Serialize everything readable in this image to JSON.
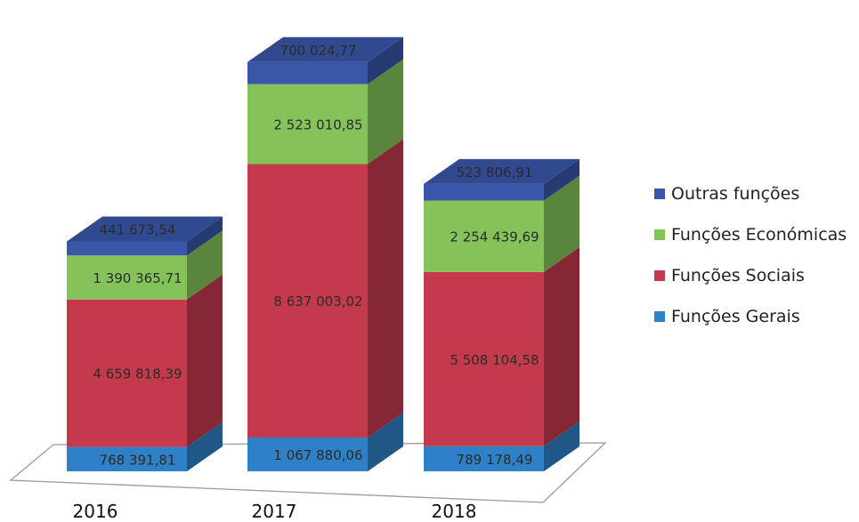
{
  "chart_data": {
    "type": "bar",
    "stacked": true,
    "three_d": true,
    "categories": [
      "2016",
      "2017",
      "2018"
    ],
    "series": [
      {
        "name": "Funções Gerais",
        "color": "#2e80c7",
        "values": [
          768391.81,
          1067880.06,
          789178.49
        ],
        "labels": [
          "768 391,81",
          "1 067 880,06",
          "789 178,49"
        ]
      },
      {
        "name": "Funções Sociais",
        "color": "#c43a4c",
        "values": [
          4659818.39,
          8637003.02,
          5508104.58
        ],
        "labels": [
          "4 659 818,39",
          "8 637 003,02",
          "5 508 104,58"
        ]
      },
      {
        "name": "Funções Económicas",
        "color": "#84c35a",
        "values": [
          1390365.71,
          2523010.85,
          2254439.69
        ],
        "labels": [
          "1 390 365,71",
          "2 523 010,85",
          "2 254 439,69"
        ]
      },
      {
        "name": "Outras funções",
        "color": "#3a56a8",
        "values": [
          441673.54,
          700024.77,
          523806.91
        ],
        "labels": [
          "441 673,54",
          "700 024,77",
          "523 806,91"
        ]
      }
    ],
    "legend_order": [
      "Outras funções",
      "Funções Económicas",
      "Funções Sociais",
      "Funções Gerais"
    ],
    "legend_position": "right",
    "title": "",
    "xlabel": "",
    "ylabel": "",
    "grid": false
  }
}
